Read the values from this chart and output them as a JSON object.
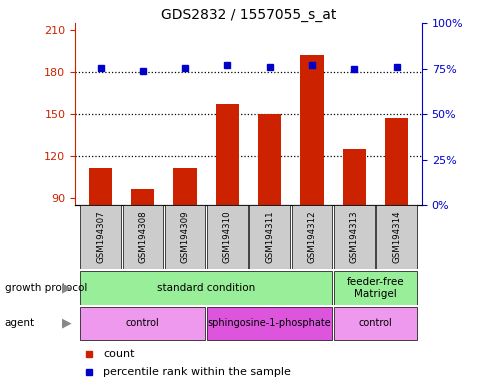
{
  "title": "GDS2832 / 1557055_s_at",
  "samples": [
    "GSM194307",
    "GSM194308",
    "GSM194309",
    "GSM194310",
    "GSM194311",
    "GSM194312",
    "GSM194313",
    "GSM194314"
  ],
  "bar_values": [
    112,
    97,
    112,
    157,
    150,
    192,
    125,
    147
  ],
  "dot_values": [
    183,
    181,
    183,
    185,
    184,
    185,
    182,
    184
  ],
  "bar_color": "#cc2200",
  "dot_color": "#0000cc",
  "ylim_left": [
    85,
    215
  ],
  "yticks_left": [
    90,
    120,
    150,
    180,
    210
  ],
  "ylim_right": [
    0,
    100
  ],
  "yticks_right": [
    0,
    25,
    50,
    75,
    100
  ],
  "ytick_right_labels": [
    "0%",
    "25%",
    "50%",
    "75%",
    "100%"
  ],
  "hlines": [
    120,
    150,
    180
  ],
  "bar_width": 0.55,
  "left_axis_color": "#cc2200",
  "right_axis_color": "#0000cc",
  "sample_box_color": "#cccccc",
  "gp_groups": [
    {
      "text": "standard condition",
      "start": 0,
      "end": 5,
      "color": "#99ee99"
    },
    {
      "text": "feeder-free\nMatrigel",
      "start": 6,
      "end": 7,
      "color": "#99ee99"
    }
  ],
  "ag_groups": [
    {
      "text": "control",
      "start": 0,
      "end": 2,
      "color": "#ee99ee"
    },
    {
      "text": "sphingosine-1-phosphate",
      "start": 3,
      "end": 5,
      "color": "#dd55dd"
    },
    {
      "text": "control",
      "start": 6,
      "end": 7,
      "color": "#ee99ee"
    }
  ],
  "legend_count_color": "#cc2200",
  "legend_pct_color": "#0000cc",
  "legend_count_label": "count",
  "legend_pct_label": "percentile rank within the sample",
  "gp_label": "growth protocol",
  "agent_label": "agent"
}
